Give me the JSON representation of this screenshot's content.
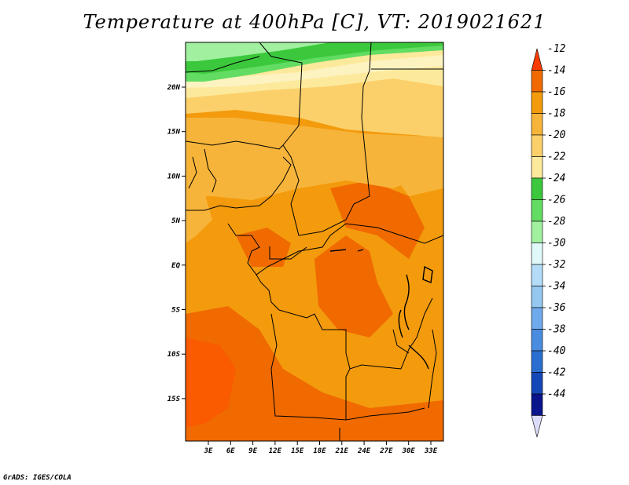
{
  "title": "Temperature at 400hPa [C], VT: 2019021621",
  "credit": "GrADS: IGES/COLA",
  "map": {
    "lon_labels": [
      "3E",
      "6E",
      "9E",
      "12E",
      "15E",
      "18E",
      "21E",
      "24E",
      "27E",
      "30E",
      "33E"
    ],
    "lat_labels": [
      "20N",
      "15N",
      "10N",
      "5N",
      "EQ",
      "5S",
      "10S",
      "15S"
    ]
  },
  "colorbar": {
    "labels": [
      "-12",
      "-14",
      "-16",
      "-18",
      "-20",
      "-22",
      "-24",
      "-26",
      "-28",
      "-30",
      "-32",
      "-34",
      "-36",
      "-38",
      "-40",
      "-42",
      "-44"
    ],
    "colors": [
      "#fa3c00",
      "#f06a00",
      "#f39b0d",
      "#f7b43a",
      "#fbd06b",
      "#fde99b",
      "#3cc83c",
      "#62dc62",
      "#a0f0a0",
      "#e0f8f8",
      "#b4dcf8",
      "#94c8f0",
      "#6eaaec",
      "#4a8ce0",
      "#2a6ed0",
      "#1448b8",
      "#0a148c",
      "#dcdcf8"
    ]
  }
}
